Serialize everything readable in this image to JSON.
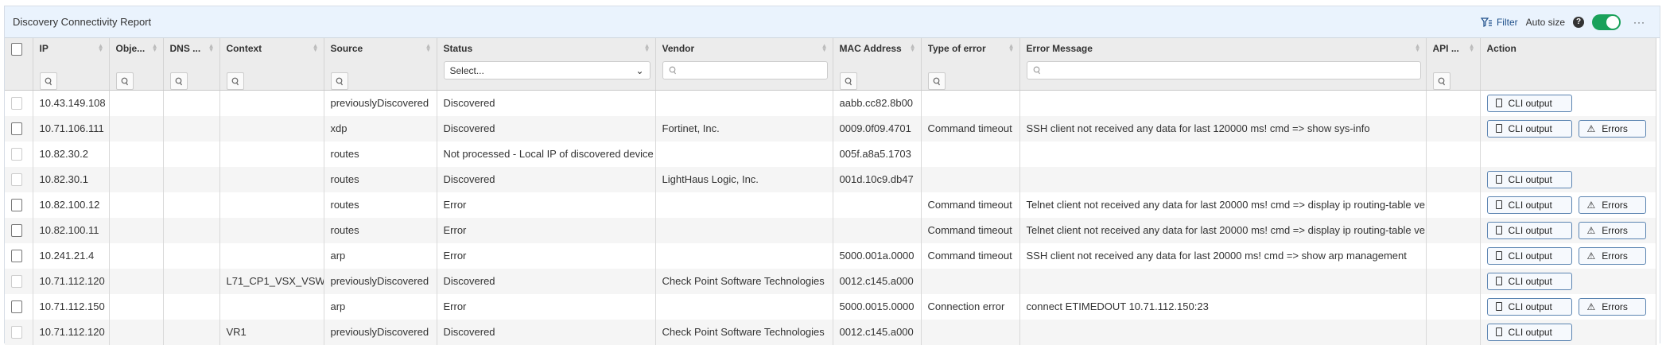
{
  "header": {
    "title": "Discovery Connectivity Report",
    "filter_label": "Filter",
    "autosize_label": "Auto size",
    "help": "?",
    "autosize_on": true,
    "more": "···",
    "filter_icon": "filter-icon"
  },
  "columns": [
    {
      "label": "IP",
      "filter": "search"
    },
    {
      "label": "Obje...",
      "filter": "search"
    },
    {
      "label": "DNS ...",
      "filter": "search"
    },
    {
      "label": "Context",
      "filter": "search"
    },
    {
      "label": "Source",
      "filter": "search"
    },
    {
      "label": "Status",
      "filter": "select",
      "placeholder": "Select..."
    },
    {
      "label": "Vendor",
      "filter": "input"
    },
    {
      "label": "MAC Address",
      "filter": "search"
    },
    {
      "label": "Type of error",
      "filter": "search"
    },
    {
      "label": "Error Message",
      "filter": "input"
    },
    {
      "label": "API ...",
      "filter": "search"
    },
    {
      "label": "Action",
      "filter": "none"
    }
  ],
  "actions": {
    "cli": "CLI output",
    "errors": "Errors"
  },
  "rows": [
    {
      "ip": "10.43.149.108",
      "obj": "",
      "dns": "",
      "context": "",
      "source": "previouslyDiscovered",
      "status": "Discovered",
      "vendor": "",
      "mac": "aabb.cc82.8b00",
      "type": "",
      "message": "",
      "api": "",
      "cli": true,
      "errors": false
    },
    {
      "ip": "10.71.106.111",
      "obj": "",
      "dns": "",
      "context": "",
      "source": "xdp",
      "status": "Discovered",
      "vendor": "Fortinet, Inc.",
      "mac": "0009.0f09.4701",
      "type": "Command timeout",
      "message": "SSH client not received any data for last 120000 ms! cmd => show sys-info",
      "api": "",
      "cli": true,
      "errors": true
    },
    {
      "ip": "10.82.30.2",
      "obj": "",
      "dns": "",
      "context": "",
      "source": "routes",
      "status": "Not processed - Local IP of discovered device",
      "vendor": "",
      "mac": "005f.a8a5.1703",
      "type": "",
      "message": "",
      "api": "",
      "cli": false,
      "errors": false
    },
    {
      "ip": "10.82.30.1",
      "obj": "",
      "dns": "",
      "context": "",
      "source": "routes",
      "status": "Discovered",
      "vendor": "LightHaus Logic, Inc.",
      "mac": "001d.10c9.db47",
      "type": "",
      "message": "",
      "api": "",
      "cli": true,
      "errors": false
    },
    {
      "ip": "10.82.100.12",
      "obj": "",
      "dns": "",
      "context": "",
      "source": "routes",
      "status": "Error",
      "vendor": "",
      "mac": "",
      "type": "Command timeout",
      "message": "Telnet client not received any data for last 20000 ms! cmd => display ip routing-table ve",
      "api": "",
      "cli": true,
      "errors": true
    },
    {
      "ip": "10.82.100.11",
      "obj": "",
      "dns": "",
      "context": "",
      "source": "routes",
      "status": "Error",
      "vendor": "",
      "mac": "",
      "type": "Command timeout",
      "message": "Telnet client not received any data for last 20000 ms! cmd => display ip routing-table ve",
      "api": "",
      "cli": true,
      "errors": true
    },
    {
      "ip": "10.241.21.4",
      "obj": "",
      "dns": "",
      "context": "",
      "source": "arp",
      "status": "Error",
      "vendor": "",
      "mac": "5000.001a.0000",
      "type": "Command timeout",
      "message": "SSH client not received any data for last 20000 ms! cmd => show arp management",
      "api": "",
      "cli": true,
      "errors": true
    },
    {
      "ip": "10.71.112.120",
      "obj": "",
      "dns": "",
      "context": "L71_CP1_VSX_VSW",
      "source": "previouslyDiscovered",
      "status": "Discovered",
      "vendor": "Check Point Software Technologies",
      "mac": "0012.c145.a000",
      "type": "",
      "message": "",
      "api": "",
      "cli": true,
      "errors": false
    },
    {
      "ip": "10.71.112.150",
      "obj": "",
      "dns": "",
      "context": "",
      "source": "arp",
      "status": "Error",
      "vendor": "",
      "mac": "5000.0015.0000",
      "type": "Connection error",
      "message": "connect ETIMEDOUT 10.71.112.150:23",
      "api": "",
      "cli": true,
      "errors": true
    },
    {
      "ip": "10.71.112.120",
      "obj": "",
      "dns": "",
      "context": "VR1",
      "source": "previouslyDiscovered",
      "status": "Discovered",
      "vendor": "Check Point Software Technologies",
      "mac": "0012.c145.a000",
      "type": "",
      "message": "",
      "api": "",
      "cli": true,
      "errors": false
    }
  ]
}
